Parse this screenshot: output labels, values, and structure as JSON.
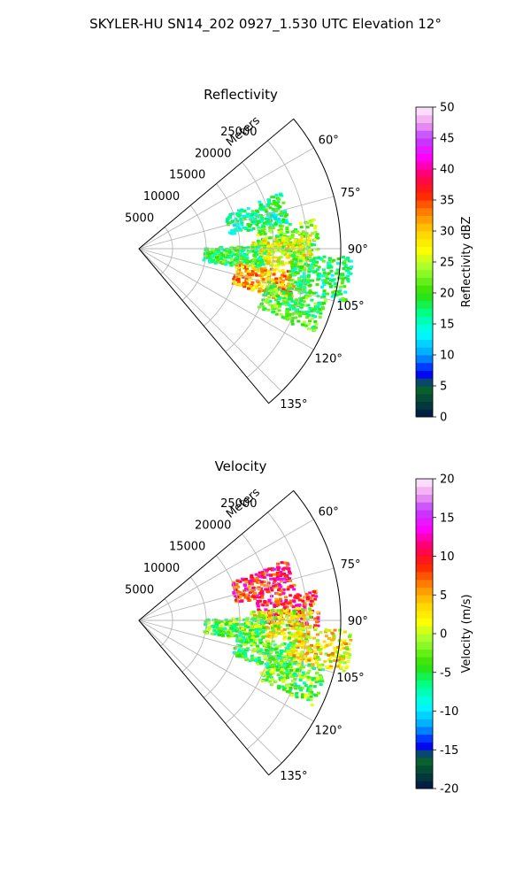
{
  "suptitle": "SKYLER-HU  SN14_202  0927_1.530 UTC Elevation 12°",
  "chart_data": [
    {
      "type": "heatmap",
      "projection": "polar-sector",
      "title": "Reflectivity",
      "radial_label": "Meters",
      "radial_range": [
        0,
        30000
      ],
      "radial_ticks": [
        "5000",
        "10000",
        "15000",
        "20000",
        "25000"
      ],
      "azimuth_range_deg": [
        50,
        140
      ],
      "azimuth_ticks": [
        "60°",
        "75°",
        "90°",
        "105°",
        "120°",
        "135°"
      ],
      "grid": true,
      "colorbar": {
        "label": "Reflectivity dBZ",
        "range": [
          0,
          50
        ],
        "ticks": [
          "0",
          "5",
          "10",
          "15",
          "20",
          "25",
          "30",
          "35",
          "40",
          "45",
          "50"
        ]
      },
      "echo_regions": [
        {
          "azimuth_deg": 74,
          "range_m": 18000,
          "value": 17
        },
        {
          "azimuth_deg": 86,
          "range_m": 22000,
          "value": 22
        },
        {
          "azimuth_deg": 91,
          "range_m": 21000,
          "value": 27
        },
        {
          "azimuth_deg": 94,
          "range_m": 14000,
          "value": 19
        },
        {
          "azimuth_deg": 104,
          "range_m": 19000,
          "value": 31
        },
        {
          "azimuth_deg": 110,
          "range_m": 24000,
          "value": 20
        },
        {
          "azimuth_deg": 98,
          "range_m": 27000,
          "value": 18
        }
      ]
    },
    {
      "type": "heatmap",
      "projection": "polar-sector",
      "title": "Velocity",
      "radial_label": "Meters",
      "radial_range": [
        0,
        30000
      ],
      "radial_ticks": [
        "5000",
        "10000",
        "15000",
        "20000",
        "25000"
      ],
      "azimuth_range_deg": [
        50,
        140
      ],
      "azimuth_ticks": [
        "60°",
        "75°",
        "90°",
        "105°",
        "120°",
        "135°"
      ],
      "grid": true,
      "colorbar": {
        "label": "Velocity (m/s)",
        "range": [
          -20,
          20
        ],
        "ticks": [
          "-20",
          "-15",
          "-10",
          "-5",
          "0",
          "5",
          "10",
          "15",
          "20"
        ]
      },
      "echo_regions": [
        {
          "azimuth_deg": 73,
          "range_m": 19000,
          "value": 10
        },
        {
          "azimuth_deg": 86,
          "range_m": 22000,
          "value": 9
        },
        {
          "azimuth_deg": 91,
          "range_m": 21000,
          "value": 1
        },
        {
          "azimuth_deg": 94,
          "range_m": 14000,
          "value": -3
        },
        {
          "azimuth_deg": 104,
          "range_m": 19000,
          "value": -4
        },
        {
          "azimuth_deg": 110,
          "range_m": 24000,
          "value": -3
        },
        {
          "azimuth_deg": 98,
          "range_m": 27000,
          "value": 2
        }
      ]
    }
  ]
}
